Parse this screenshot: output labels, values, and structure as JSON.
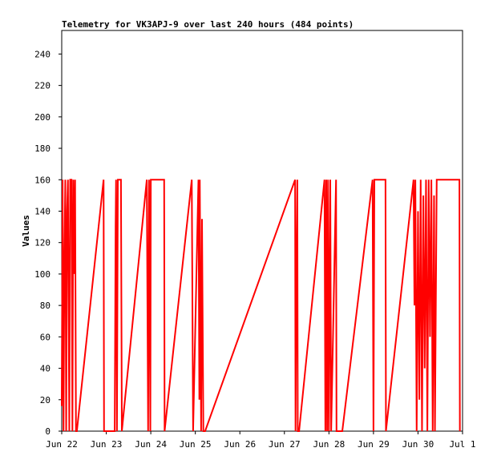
{
  "chart_data": {
    "type": "line",
    "title": "Telemetry for VK3APJ-9 over last 240 hours (484 points)",
    "y_label": "Values",
    "xlim": [
      0,
      9
    ],
    "xticks": [
      {
        "value": 0,
        "label": "Jun 22"
      },
      {
        "value": 1,
        "label": "Jun 23"
      },
      {
        "value": 2,
        "label": "Jun 24"
      },
      {
        "value": 3,
        "label": "Jun 25"
      },
      {
        "value": 4,
        "label": "Jun 26"
      },
      {
        "value": 5,
        "label": "Jun 27"
      },
      {
        "value": 6,
        "label": "Jun 28"
      },
      {
        "value": 7,
        "label": "Jun 29"
      },
      {
        "value": 8,
        "label": "Jun 30"
      },
      {
        "value": 9,
        "label": "Jul 1"
      }
    ],
    "ylim": [
      0,
      255
    ],
    "yticks": [
      0,
      20,
      40,
      60,
      80,
      100,
      120,
      140,
      160,
      180,
      200,
      220,
      240
    ],
    "x": [
      0,
      0.02,
      0.04,
      0.06,
      0.08,
      0.1,
      0.12,
      0.14,
      0.17,
      0.19,
      0.22,
      0.24,
      0.26,
      0.28,
      0.3,
      0.32,
      0.34,
      0.94,
      0.95,
      1.19,
      1.21,
      1.22,
      1.24,
      1.26,
      1.33,
      1.35,
      1.91,
      1.94,
      1.96,
      1.99,
      2.0,
      2.12,
      2.3,
      2.31,
      2.92,
      2.95,
      3.07,
      3.09,
      3.1,
      3.13,
      3.15,
      3.18,
      3.22,
      5.24,
      5.25,
      5.27,
      5.29,
      5.3,
      5.33,
      5.9,
      5.92,
      5.94,
      5.96,
      5.98,
      6.0,
      6.03,
      6.05,
      6.16,
      6.17,
      6.3,
      6.98,
      7.0,
      7.02,
      7.27,
      7.28,
      7.9,
      7.92,
      7.94,
      7.97,
      8.0,
      8.03,
      8.06,
      8.09,
      8.12,
      8.15,
      8.18,
      8.21,
      8.24,
      8.27,
      8.3,
      8.33,
      8.36,
      8.38,
      8.42,
      8.93,
      8.94
    ],
    "series": [
      {
        "name": "Values",
        "color": "#ff0000",
        "values": [
          16,
          160,
          0,
          110,
          160,
          0,
          140,
          160,
          0,
          160,
          160,
          0,
          160,
          100,
          160,
          0,
          0,
          160,
          0,
          0,
          130,
          160,
          0,
          160,
          160,
          0,
          160,
          0,
          160,
          0,
          160,
          160,
          160,
          0,
          160,
          0,
          160,
          20,
          160,
          0,
          135,
          0,
          0,
          160,
          0,
          100,
          160,
          0,
          0,
          160,
          0,
          160,
          0,
          160,
          0,
          160,
          0,
          160,
          0,
          0,
          160,
          0,
          160,
          160,
          0,
          160,
          80,
          160,
          0,
          140,
          20,
          160,
          0,
          150,
          40,
          160,
          0,
          160,
          60,
          160,
          0,
          150,
          0,
          160,
          160,
          0
        ]
      }
    ]
  }
}
